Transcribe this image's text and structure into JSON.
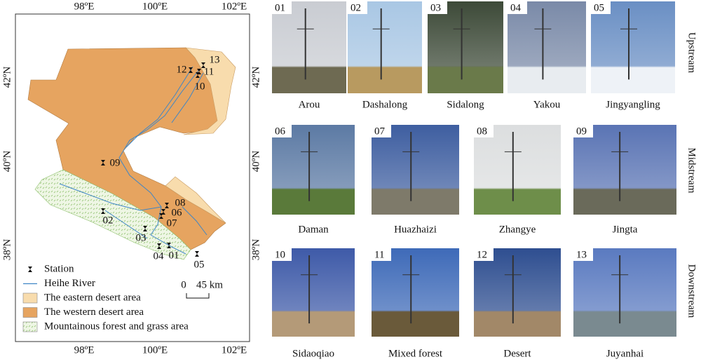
{
  "map": {
    "lon_labels": [
      "98ºE",
      "100ºE",
      "102ºE"
    ],
    "lat_labels": [
      "42ºN",
      "40ºN",
      "38ºN"
    ],
    "stations": [
      "01",
      "02",
      "03",
      "04",
      "05",
      "06",
      "07",
      "08",
      "09",
      "10",
      "11",
      "12",
      "13"
    ],
    "legend": [
      "Station",
      "Heihe River",
      "The eastern desert area",
      "The western desert area",
      "Mountainous forest and grass area"
    ],
    "scale": {
      "start": "0",
      "end": "45 km"
    }
  },
  "photos": {
    "rows": [
      {
        "label": "Upstream",
        "items": [
          {
            "id": "01",
            "name": "Arou"
          },
          {
            "id": "02",
            "name": "Dashalong"
          },
          {
            "id": "03",
            "name": "Sidalong"
          },
          {
            "id": "04",
            "name": "Yakou"
          },
          {
            "id": "05",
            "name": "Jingyangling"
          }
        ]
      },
      {
        "label": "Midstream",
        "items": [
          {
            "id": "06",
            "name": "Daman"
          },
          {
            "id": "07",
            "name": "Huazhaizi"
          },
          {
            "id": "08",
            "name": "Zhangye"
          },
          {
            "id": "09",
            "name": "Jingta"
          }
        ]
      },
      {
        "label": "Downstream",
        "items": [
          {
            "id": "10",
            "name": "Sidaoqiao"
          },
          {
            "id": "11",
            "name": "Mixed forest"
          },
          {
            "id": "12",
            "name": "Desert"
          },
          {
            "id": "13",
            "name": "Juyanhai"
          }
        ]
      }
    ]
  }
}
